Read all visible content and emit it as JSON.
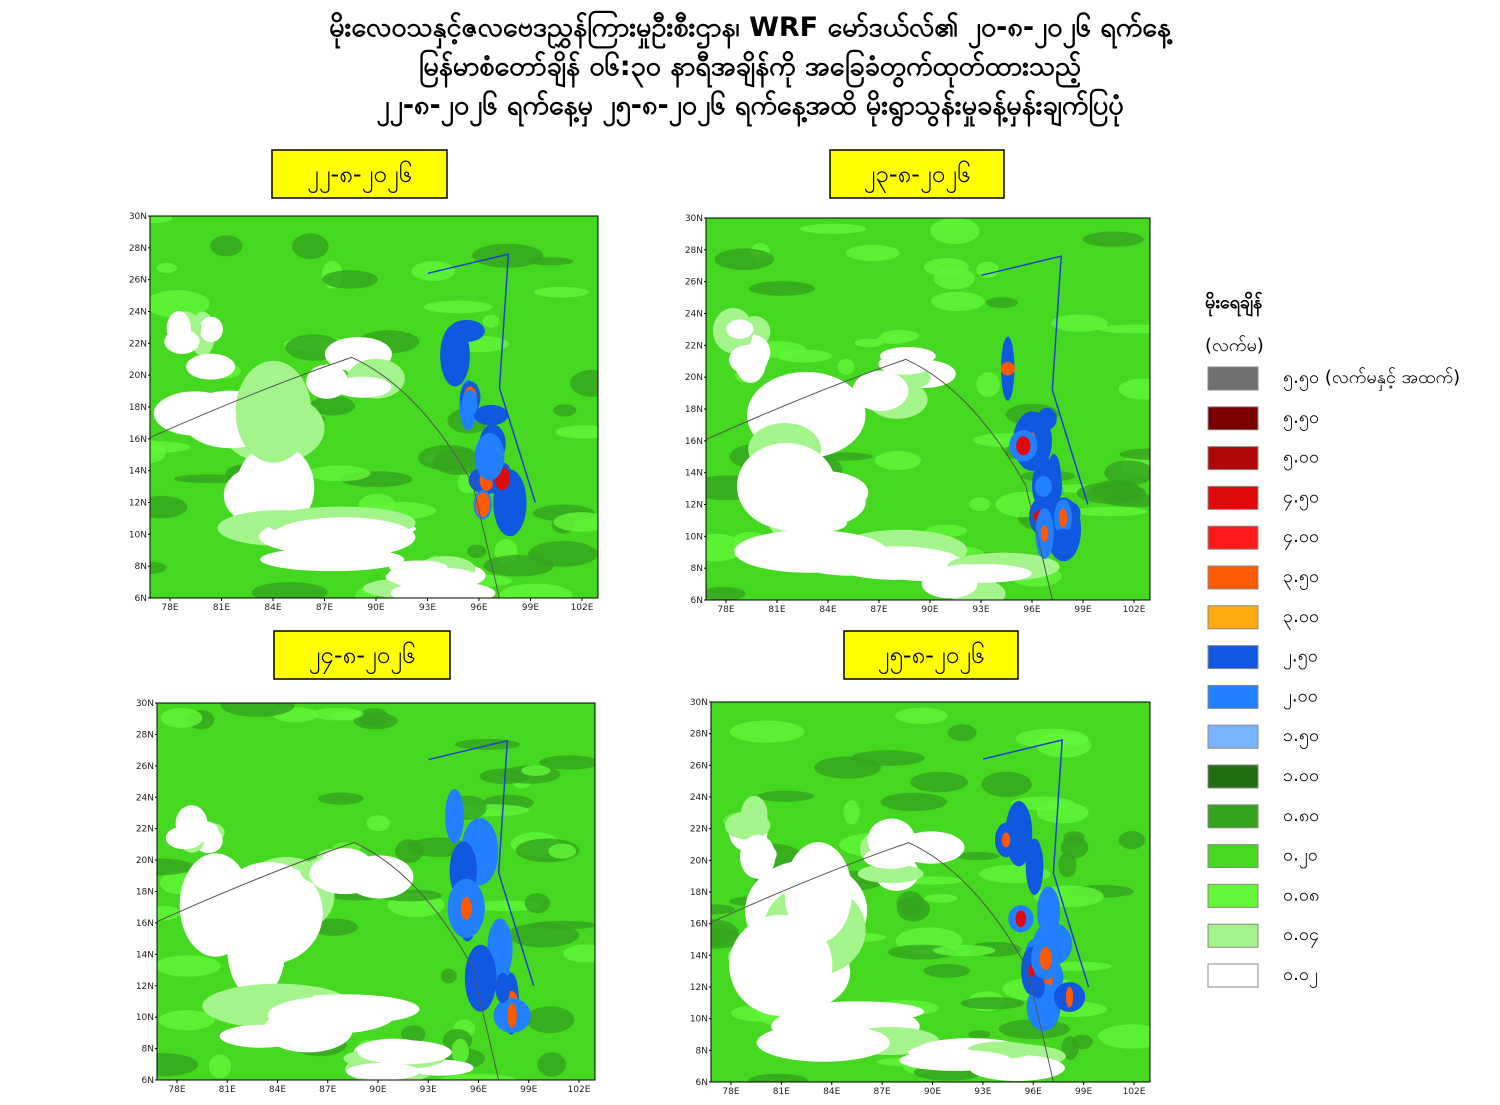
{
  "title": [
    "မိုးလေဝသနှင့်ဇလဗေဒညွှန်ကြားမှုဦးစီးဌာန၊ WRF မော်ဒယ်လ်၏ ၂၀-၈-၂၀၂၆ ရက်နေ့",
    "မြန်မာစံတော်ချိန် ၀၆:၃၀ နာရီအချိန်ကို အခြေခံတွက်ထုတ်ထားသည့်",
    "၂၂-၈-၂၀၂၆ ရက်နေ့မှ ၂၅-၈-၂၀၂၆ ရက်နေ့အထိ မိုးရွာသွန်းမှုခန့်မှန်းချက်ပြပုံ"
  ],
  "panels": [
    {
      "date": "၂၂-၈-၂၀၂၆"
    },
    {
      "date": "၂၃-၈-၂၀၂၆"
    },
    {
      "date": "၂၄-၈-၂၀၂၆"
    },
    {
      "date": "၂၅-၈-၂၀၂၆"
    }
  ],
  "lat_ticks": [
    "30N",
    "28N",
    "26N",
    "24N",
    "22N",
    "20N",
    "18N",
    "16N",
    "14N",
    "12N",
    "10N",
    "8N",
    "6N"
  ],
  "lon_ticks": [
    "78E",
    "81E",
    "84E",
    "87E",
    "90E",
    "93E",
    "96E",
    "99E",
    "102E"
  ],
  "legend": {
    "title": "မိုးရေချိန်",
    "unit": "(လက်မ)",
    "items": [
      {
        "label": "၅.၅၀ (လက်မနှင့် အထက်)",
        "color": "#707070"
      },
      {
        "label": "၅.၅၀",
        "color": "#7a0000"
      },
      {
        "label": "၅.၀၀",
        "color": "#b00808"
      },
      {
        "label": "၄.၅၀",
        "color": "#e00a0a"
      },
      {
        "label": "၄.၀၀",
        "color": "#ff1a1a"
      },
      {
        "label": "၃.၅၀",
        "color": "#ff5a00"
      },
      {
        "label": "၃.၀၀",
        "color": "#ffaa10"
      },
      {
        "label": "၂.၅၀",
        "color": "#1058e0"
      },
      {
        "label": "၂.၀၀",
        "color": "#2080ff"
      },
      {
        "label": "၁.၅၀",
        "color": "#78b4ff"
      },
      {
        "label": "၁.၀၀",
        "color": "#226e12"
      },
      {
        "label": "၀.၈၀",
        "color": "#34a41e"
      },
      {
        "label": "၀.၂၀",
        "color": "#44d820"
      },
      {
        "label": "၀.၀၈",
        "color": "#62f838"
      },
      {
        "label": "၀.၀၄",
        "color": "#a4f48c"
      },
      {
        "label": "၀.၀၂",
        "color": "#ffffff"
      }
    ]
  }
}
